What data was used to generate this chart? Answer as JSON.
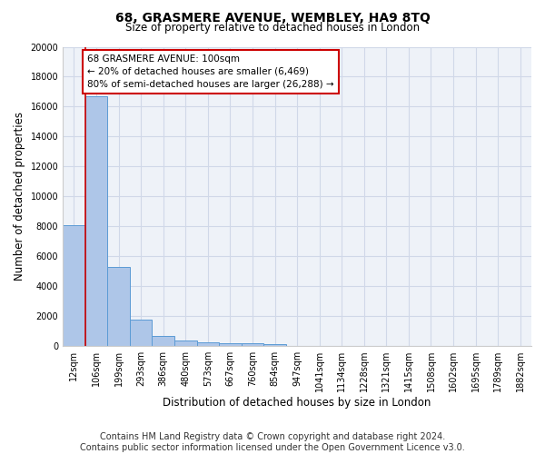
{
  "title": "68, GRASMERE AVENUE, WEMBLEY, HA9 8TQ",
  "subtitle": "Size of property relative to detached houses in London",
  "xlabel": "Distribution of detached houses by size in London",
  "ylabel": "Number of detached properties",
  "categories": [
    "12sqm",
    "106sqm",
    "199sqm",
    "293sqm",
    "386sqm",
    "480sqm",
    "573sqm",
    "667sqm",
    "760sqm",
    "854sqm",
    "947sqm",
    "1041sqm",
    "1134sqm",
    "1228sqm",
    "1321sqm",
    "1415sqm",
    "1508sqm",
    "1602sqm",
    "1695sqm",
    "1789sqm",
    "1882sqm"
  ],
  "values": [
    8100,
    16700,
    5300,
    1750,
    700,
    350,
    270,
    200,
    180,
    130,
    0,
    0,
    0,
    0,
    0,
    0,
    0,
    0,
    0,
    0,
    0
  ],
  "bar_color": "#aec6e8",
  "bar_edgecolor": "#5b9bd5",
  "grid_color": "#d0d8e8",
  "background_color": "#eef2f8",
  "vline_color": "#cc0000",
  "annotation_text": "68 GRASMERE AVENUE: 100sqm\n← 20% of detached houses are smaller (6,469)\n80% of semi-detached houses are larger (26,288) →",
  "annotation_box_facecolor": "#ffffff",
  "annotation_box_edgecolor": "#cc0000",
  "ylim": [
    0,
    20000
  ],
  "yticks": [
    0,
    2000,
    4000,
    6000,
    8000,
    10000,
    12000,
    14000,
    16000,
    18000,
    20000
  ],
  "footer_line1": "Contains HM Land Registry data © Crown copyright and database right 2024.",
  "footer_line2": "Contains public sector information licensed under the Open Government Licence v3.0.",
  "title_fontsize": 10,
  "subtitle_fontsize": 8.5,
  "xlabel_fontsize": 8.5,
  "ylabel_fontsize": 8.5,
  "tick_fontsize": 7,
  "annotation_fontsize": 7.5,
  "footer_fontsize": 7
}
